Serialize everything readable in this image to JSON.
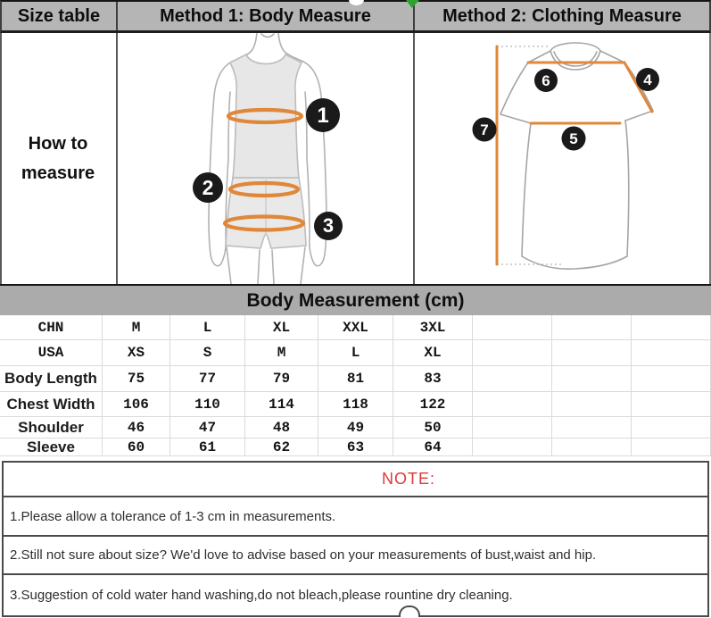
{
  "header": {
    "size_table": "Size table",
    "method1": "Method 1: Body Measure",
    "method2": "Method 2: Clothing Measure"
  },
  "left_panel": {
    "line1": "How to",
    "line2": "measure"
  },
  "method1_markers": {
    "m1": "1",
    "m2": "2",
    "m3": "3"
  },
  "method2_markers": {
    "m4": "4",
    "m5": "5",
    "m6": "6",
    "m7": "7"
  },
  "section_title": "Body Measurement (cm)",
  "size_table": {
    "empty_trailing_columns": 3,
    "rows": [
      {
        "label": "CHN",
        "values": [
          "M",
          "L",
          "XL",
          "XXL",
          "3XL"
        ]
      },
      {
        "label": "USA",
        "values": [
          "XS",
          "S",
          "M",
          "L",
          "XL"
        ]
      },
      {
        "label": "Body Length",
        "values": [
          "75",
          "77",
          "79",
          "81",
          "83"
        ]
      },
      {
        "label": "Chest Width",
        "values": [
          "106",
          "110",
          "114",
          "118",
          "122"
        ]
      },
      {
        "label": "Shoulder",
        "values": [
          "46",
          "47",
          "48",
          "49",
          "50"
        ]
      },
      {
        "label": "Sleeve",
        "values": [
          "60",
          "61",
          "62",
          "63",
          "64"
        ]
      }
    ]
  },
  "notes": {
    "title": "NOTE:",
    "items": [
      "1.Please allow a tolerance of 1-3 cm in measurements.",
      "2.Still not sure about size? We'd love to advise based on your measurements of bust,waist and hip.",
      "3.Suggestion of cold water hand washing,do not bleach,please rountine dry cleaning."
    ]
  },
  "colors": {
    "accent_orange": "#e0873a",
    "note_red": "#d93a3a",
    "header_gray": "#b5b5b5",
    "bar_gray": "#ababab",
    "marker_black": "#1a1a1a",
    "artifact_green": "#2fa12f"
  }
}
